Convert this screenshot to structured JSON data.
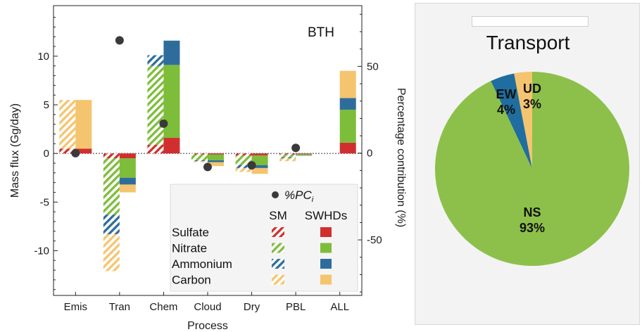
{
  "chart_data": [
    {
      "type": "bar",
      "title": "BTH",
      "xlabel": "Process",
      "ylabel": "Mass flux (Gg/day)",
      "y2label": "Percentage contribution (%)",
      "ylim": [
        -14.6,
        15.2
      ],
      "y2lim": [
        -82,
        85
      ],
      "yticks": [
        "10",
        "5",
        "0",
        "-5",
        "-10"
      ],
      "ytick_values": [
        10,
        5,
        0,
        -5,
        -10
      ],
      "y2ticks": [
        "50",
        "0",
        "-50"
      ],
      "y2tick_values": [
        50,
        0,
        -50
      ],
      "categories": [
        "Emis",
        "Tran",
        "Chem",
        "Cloud",
        "Dry",
        "PBL",
        "ALL"
      ],
      "species": [
        "Sulfate",
        "Nitrate",
        "Ammonium",
        "Carbon"
      ],
      "colors": {
        "Sulfate": "#d12f2f",
        "Nitrate": "#7dbd3a",
        "Ammonium": "#2e6d9b",
        "Carbon": "#f5c46f"
      },
      "series": [
        {
          "name": "SM",
          "style": "hatched",
          "values": {
            "Sulfate": [
              0.5,
              -0.5,
              0.9,
              -0.1,
              -0.2,
              -0.1,
              0
            ],
            "Nitrate": [
              0.0,
              -5.8,
              8.1,
              -0.6,
              -1.0,
              -0.3,
              0
            ],
            "Ammonium": [
              0.0,
              -2.0,
              1.1,
              -0.1,
              -0.3,
              -0.1,
              0
            ],
            "Carbon": [
              5.0,
              -3.8,
              0.0,
              -0.1,
              -0.4,
              -0.3,
              0
            ]
          }
        },
        {
          "name": "SWHDs",
          "style": "solid",
          "values": {
            "Sulfate": [
              0.5,
              -0.5,
              1.6,
              -0.1,
              -0.2,
              -0.05,
              1.1
            ],
            "Nitrate": [
              0.0,
              -2.0,
              7.5,
              -0.6,
              -1.0,
              -0.1,
              3.4
            ],
            "Ammonium": [
              0.0,
              -0.7,
              2.5,
              -0.2,
              -0.3,
              -0.05,
              1.2
            ],
            "Carbon": [
              5.0,
              -0.8,
              0.0,
              -0.4,
              -0.6,
              -0.05,
              2.8
            ]
          }
        }
      ],
      "pc_label": "%PC",
      "pc_sub": "i",
      "pc_values": [
        0,
        65,
        17,
        -8,
        -7,
        3,
        null
      ],
      "legend_headers": [
        "SM",
        "SWHDs"
      ]
    },
    {
      "type": "pie",
      "title": "Transport",
      "slices": [
        {
          "label": "NS",
          "pct_label": "93%",
          "value": 93,
          "color": "#8dc04a"
        },
        {
          "label": "EW",
          "pct_label": "4%",
          "value": 4,
          "color": "#1f6e9f"
        },
        {
          "label": "UD",
          "pct_label": "3%",
          "value": 3,
          "color": "#f5c46f"
        }
      ]
    }
  ]
}
